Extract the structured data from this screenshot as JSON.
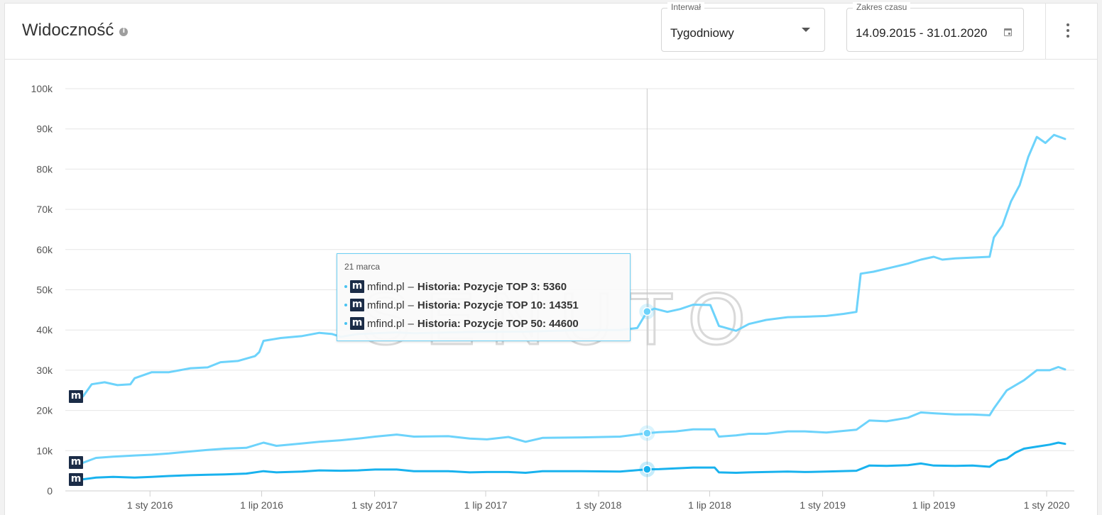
{
  "header": {
    "title": "Widoczność",
    "interval": {
      "label": "Interwał",
      "value": "Tygodniowy"
    },
    "range": {
      "label": "Zakres czasu",
      "value": "14.09.2015 - 31.01.2020"
    }
  },
  "tooltip": {
    "date": "21 marca",
    "rows": [
      {
        "domain": "mfind.pl",
        "sep": "–",
        "series": "Historia: Pozycje TOP 3:",
        "value": "5360"
      },
      {
        "domain": "mfind.pl",
        "sep": "–",
        "series": "Historia: Pozycje TOP 10:",
        "value": "14351"
      },
      {
        "domain": "mfind.pl",
        "sep": "–",
        "series": "Historia: Pozycje TOP 50:",
        "value": "44600"
      }
    ]
  },
  "logo_letter": "m",
  "colors": {
    "top50": "#6dd3fb",
    "top10": "#6dd3fb",
    "top3": "#19b2ee",
    "grid": "#e6e6e6",
    "crosshair": "#c8c8c8"
  },
  "chart_data": {
    "type": "line",
    "x_start": "2015-09-14",
    "x_end": "2020-01-31",
    "ylim": [
      0,
      100000
    ],
    "y_ticks": [
      0,
      10000,
      20000,
      30000,
      40000,
      50000,
      60000,
      70000,
      80000,
      90000,
      100000
    ],
    "y_tick_labels": [
      "0",
      "10k",
      "20k",
      "30k",
      "40k",
      "50k",
      "60k",
      "70k",
      "80k",
      "90k",
      "100k"
    ],
    "x_ticks": [
      "2016-01-01",
      "2016-07-01",
      "2017-01-01",
      "2017-07-01",
      "2018-01-01",
      "2018-07-01",
      "2019-01-01",
      "2019-07-01",
      "2020-01-01"
    ],
    "x_tick_labels": [
      "1 sty 2016",
      "1 lip 2016",
      "1 sty 2017",
      "1 lip 2017",
      "1 sty 2018",
      "1 lip 2018",
      "1 sty 2019",
      "1 lip 2019",
      "1 sty 2020"
    ],
    "highlight_date": "2018-03-21",
    "watermark": "SENUTO",
    "series": [
      {
        "name": "Historia: Pozycje TOP 50",
        "color": "#6dd3fb",
        "points": [
          [
            "2015-09-14",
            23500
          ],
          [
            "2015-09-28",
            26500
          ],
          [
            "2015-10-19",
            27000
          ],
          [
            "2015-11-09",
            26300
          ],
          [
            "2015-11-30",
            26500
          ],
          [
            "2015-12-07",
            28000
          ],
          [
            "2016-01-04",
            29500
          ],
          [
            "2016-02-01",
            29500
          ],
          [
            "2016-03-07",
            30500
          ],
          [
            "2016-04-04",
            30700
          ],
          [
            "2016-04-25",
            32000
          ],
          [
            "2016-05-23",
            32300
          ],
          [
            "2016-06-20",
            33500
          ],
          [
            "2016-06-27",
            34500
          ],
          [
            "2016-07-04",
            37300
          ],
          [
            "2016-08-01",
            38000
          ],
          [
            "2016-09-05",
            38500
          ],
          [
            "2016-10-03",
            39300
          ],
          [
            "2016-10-24",
            39000
          ],
          [
            "2016-11-07",
            38300
          ],
          [
            "2016-12-05",
            39000
          ],
          [
            "2017-01-02",
            39200
          ],
          [
            "2017-02-06",
            39400
          ],
          [
            "2017-03-06",
            39200
          ],
          [
            "2017-06-05",
            39500
          ],
          [
            "2017-09-04",
            39600
          ],
          [
            "2017-12-04",
            40000
          ],
          [
            "2018-02-05",
            40000
          ],
          [
            "2018-03-05",
            40500
          ],
          [
            "2018-03-21",
            44600
          ],
          [
            "2018-04-02",
            45300
          ],
          [
            "2018-04-23",
            44500
          ],
          [
            "2018-05-14",
            45200
          ],
          [
            "2018-06-04",
            46300
          ],
          [
            "2018-07-02",
            46200
          ],
          [
            "2018-07-16",
            41000
          ],
          [
            "2018-08-13",
            39800
          ],
          [
            "2018-09-03",
            41500
          ],
          [
            "2018-10-01",
            42500
          ],
          [
            "2018-11-05",
            43200
          ],
          [
            "2018-12-03",
            43300
          ],
          [
            "2019-01-07",
            43500
          ],
          [
            "2019-02-04",
            44000
          ],
          [
            "2019-02-25",
            44500
          ],
          [
            "2019-03-04",
            54000
          ],
          [
            "2019-03-25",
            54500
          ],
          [
            "2019-04-22",
            55500
          ],
          [
            "2019-05-20",
            56500
          ],
          [
            "2019-06-10",
            57500
          ],
          [
            "2019-07-01",
            58200
          ],
          [
            "2019-07-15",
            57500
          ],
          [
            "2019-08-05",
            57800
          ],
          [
            "2019-09-02",
            58000
          ],
          [
            "2019-09-30",
            58200
          ],
          [
            "2019-10-07",
            63000
          ],
          [
            "2019-10-21",
            66000
          ],
          [
            "2019-11-04",
            72000
          ],
          [
            "2019-11-18",
            76000
          ],
          [
            "2019-12-02",
            83000
          ],
          [
            "2019-12-16",
            88000
          ],
          [
            "2019-12-30",
            86500
          ],
          [
            "2020-01-13",
            88500
          ],
          [
            "2020-01-31",
            87500
          ]
        ]
      },
      {
        "name": "Historia: Pozycje TOP 10",
        "color": "#6dd3fb",
        "points": [
          [
            "2015-09-14",
            7000
          ],
          [
            "2015-10-05",
            8200
          ],
          [
            "2015-11-02",
            8500
          ],
          [
            "2015-12-07",
            8800
          ],
          [
            "2016-01-04",
            9000
          ],
          [
            "2016-02-01",
            9300
          ],
          [
            "2016-03-07",
            9800
          ],
          [
            "2016-04-04",
            10200
          ],
          [
            "2016-05-02",
            10500
          ],
          [
            "2016-06-06",
            10700
          ],
          [
            "2016-07-04",
            12000
          ],
          [
            "2016-07-25",
            11200
          ],
          [
            "2016-09-05",
            11800
          ],
          [
            "2016-10-03",
            12200
          ],
          [
            "2016-11-07",
            12600
          ],
          [
            "2016-12-05",
            13000
          ],
          [
            "2017-01-02",
            13500
          ],
          [
            "2017-02-06",
            14000
          ],
          [
            "2017-03-06",
            13500
          ],
          [
            "2017-05-01",
            13600
          ],
          [
            "2017-06-05",
            13000
          ],
          [
            "2017-07-03",
            12800
          ],
          [
            "2017-08-07",
            13400
          ],
          [
            "2017-09-04",
            12200
          ],
          [
            "2017-10-02",
            13200
          ],
          [
            "2017-12-04",
            13300
          ],
          [
            "2018-02-05",
            13500
          ],
          [
            "2018-03-21",
            14351
          ],
          [
            "2018-04-09",
            14600
          ],
          [
            "2018-05-07",
            14800
          ],
          [
            "2018-06-04",
            15300
          ],
          [
            "2018-07-09",
            15300
          ],
          [
            "2018-07-16",
            13500
          ],
          [
            "2018-08-13",
            13800
          ],
          [
            "2018-09-03",
            14200
          ],
          [
            "2018-10-01",
            14200
          ],
          [
            "2018-11-05",
            14800
          ],
          [
            "2018-12-03",
            14800
          ],
          [
            "2019-01-07",
            14500
          ],
          [
            "2019-02-25",
            15200
          ],
          [
            "2019-03-18",
            17500
          ],
          [
            "2019-04-15",
            17300
          ],
          [
            "2019-05-20",
            18200
          ],
          [
            "2019-06-10",
            19500
          ],
          [
            "2019-07-01",
            19300
          ],
          [
            "2019-08-05",
            19000
          ],
          [
            "2019-09-02",
            19000
          ],
          [
            "2019-09-30",
            18800
          ],
          [
            "2019-10-07",
            20500
          ],
          [
            "2019-10-28",
            25000
          ],
          [
            "2019-11-25",
            27500
          ],
          [
            "2019-12-16",
            30000
          ],
          [
            "2020-01-06",
            30000
          ],
          [
            "2020-01-20",
            30800
          ],
          [
            "2020-01-31",
            30200
          ]
        ]
      },
      {
        "name": "Historia: Pozycje TOP 3",
        "color": "#19b2ee",
        "points": [
          [
            "2015-09-14",
            2900
          ],
          [
            "2015-10-05",
            3300
          ],
          [
            "2015-11-02",
            3500
          ],
          [
            "2015-12-07",
            3300
          ],
          [
            "2016-01-04",
            3500
          ],
          [
            "2016-02-01",
            3700
          ],
          [
            "2016-03-07",
            3900
          ],
          [
            "2016-04-04",
            4000
          ],
          [
            "2016-05-02",
            4100
          ],
          [
            "2016-06-06",
            4300
          ],
          [
            "2016-07-04",
            4900
          ],
          [
            "2016-07-25",
            4600
          ],
          [
            "2016-09-05",
            4800
          ],
          [
            "2016-10-03",
            5100
          ],
          [
            "2016-11-07",
            5000
          ],
          [
            "2016-12-05",
            5100
          ],
          [
            "2017-01-02",
            5300
          ],
          [
            "2017-02-06",
            5300
          ],
          [
            "2017-03-06",
            4900
          ],
          [
            "2017-05-01",
            4900
          ],
          [
            "2017-06-05",
            4600
          ],
          [
            "2017-07-03",
            4700
          ],
          [
            "2017-08-07",
            4700
          ],
          [
            "2017-09-04",
            4500
          ],
          [
            "2017-10-02",
            4900
          ],
          [
            "2017-12-04",
            4900
          ],
          [
            "2018-02-05",
            4800
          ],
          [
            "2018-03-21",
            5360
          ],
          [
            "2018-04-09",
            5400
          ],
          [
            "2018-05-07",
            5600
          ],
          [
            "2018-06-04",
            5800
          ],
          [
            "2018-07-09",
            5800
          ],
          [
            "2018-07-16",
            4600
          ],
          [
            "2018-08-13",
            4500
          ],
          [
            "2018-09-03",
            4600
          ],
          [
            "2018-10-01",
            4700
          ],
          [
            "2018-11-05",
            4800
          ],
          [
            "2018-12-03",
            4700
          ],
          [
            "2019-01-07",
            4800
          ],
          [
            "2019-02-25",
            5000
          ],
          [
            "2019-03-18",
            6300
          ],
          [
            "2019-04-15",
            6200
          ],
          [
            "2019-05-20",
            6400
          ],
          [
            "2019-06-10",
            6800
          ],
          [
            "2019-07-01",
            6300
          ],
          [
            "2019-08-05",
            6200
          ],
          [
            "2019-09-02",
            6300
          ],
          [
            "2019-09-30",
            6000
          ],
          [
            "2019-10-14",
            7500
          ],
          [
            "2019-10-28",
            8000
          ],
          [
            "2019-11-11",
            9500
          ],
          [
            "2019-11-25",
            10500
          ],
          [
            "2019-12-16",
            11000
          ],
          [
            "2020-01-06",
            11500
          ],
          [
            "2020-01-20",
            12000
          ],
          [
            "2020-01-31",
            11700
          ]
        ]
      }
    ]
  }
}
